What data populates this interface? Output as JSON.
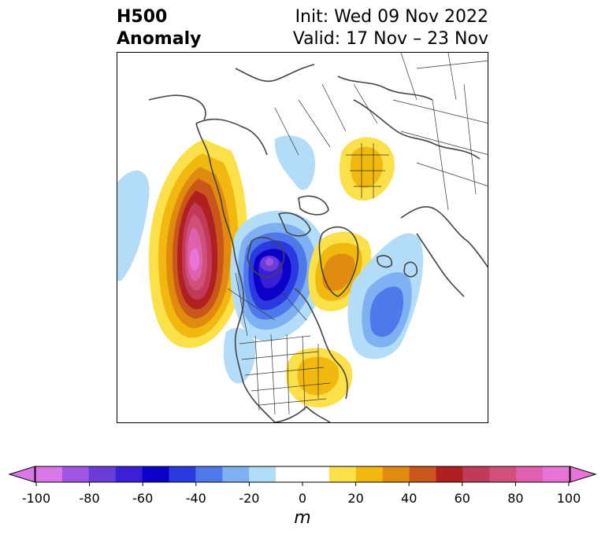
{
  "title": {
    "variable": "H500",
    "kind": "Anomaly",
    "init": "Init: Wed 09 Nov 2022",
    "valid": "Valid: 17 Nov – 23 Nov"
  },
  "map": {
    "projection": "north-polar-stereographic",
    "region": "Northern Hemisphere (North America, Arctic, North Atlantic, Eurasia)",
    "coastline_color": "#444444",
    "border_color": "#333333",
    "anomalies": [
      {
        "region": "NE Pacific / Gulf of Alaska",
        "value": 100
      },
      {
        "region": "Central Canada / Hudson Bay",
        "value": -70
      },
      {
        "region": "Greenland",
        "value": 50
      },
      {
        "region": "Eastern Siberia / Arctic",
        "value": 40
      },
      {
        "region": "North Atlantic",
        "value": -50
      },
      {
        "region": "Eastern United States",
        "value": 30
      },
      {
        "region": "Western US / Mexico",
        "value": -20
      },
      {
        "region": "Western Pacific",
        "value": -20
      },
      {
        "region": "Arctic Ocean",
        "value": -20
      }
    ]
  },
  "colorbar": {
    "unit": "m",
    "ticks": [
      "-100",
      "-80",
      "-60",
      "-40",
      "-20",
      "0",
      "20",
      "40",
      "60",
      "80",
      "100"
    ],
    "colors": [
      "#d977e8",
      "#a054e0",
      "#6a3dd8",
      "#3a1fd6",
      "#0a00c8",
      "#2a3ae0",
      "#4f78ea",
      "#7fb0f2",
      "#b3dcf9",
      "#ffffff",
      "#ffffff",
      "#fbe04a",
      "#f1b810",
      "#e08a10",
      "#c9561a",
      "#b02020",
      "#c23a5a",
      "#d0507a",
      "#e060b0",
      "#e874d8"
    ],
    "under_color": "#d977e8",
    "over_color": "#e874d8"
  }
}
